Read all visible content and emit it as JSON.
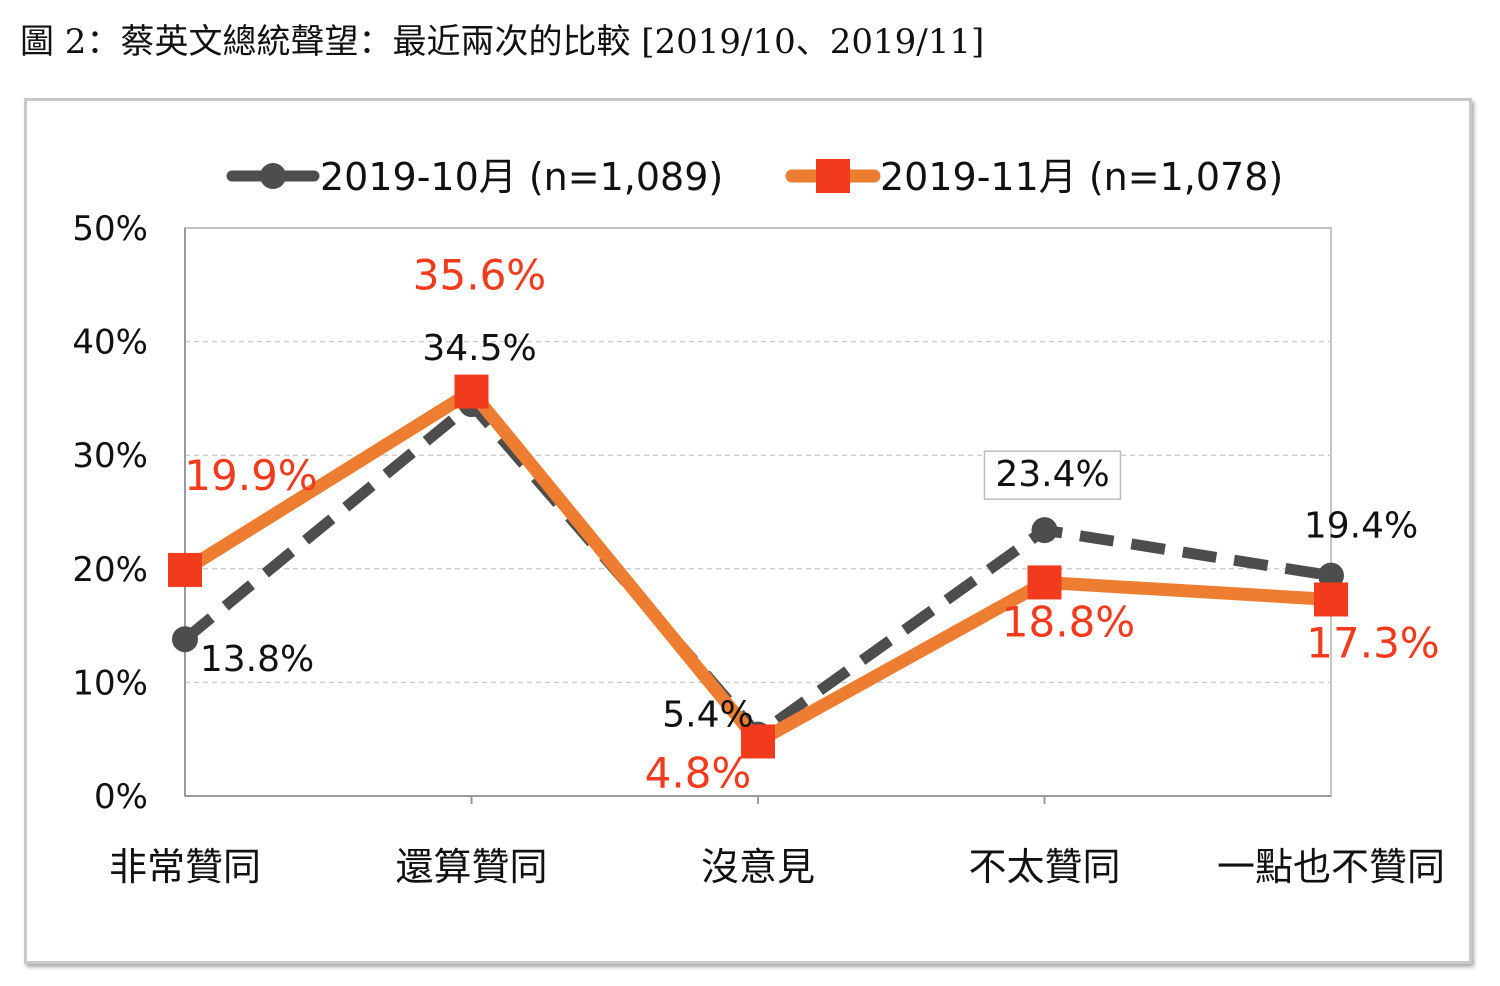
{
  "figure": {
    "title": "圖 2：蔡英文總統聲望：最近兩次的比較  [2019/10、2019/11]"
  },
  "colors": {
    "series_1": "#4d4d4d",
    "series_2_line": "#ed7d31",
    "series_2_marker": "#f23a1c",
    "series_2_label": "#f23a1c",
    "label_dark": "#111111",
    "grid": "#cfcfcf",
    "axis": "#9a9a9a"
  },
  "chart_data": {
    "type": "line",
    "title": "",
    "xlabel": "",
    "ylabel": "",
    "categories": [
      "非常贊同",
      "還算贊同",
      "沒意見",
      "不太贊同",
      "一點也不贊同"
    ],
    "ylim": [
      0,
      50
    ],
    "yticks": [
      0,
      10,
      20,
      30,
      40,
      50
    ],
    "ytick_labels": [
      "0%",
      "10%",
      "20%",
      "30%",
      "40%",
      "50%"
    ],
    "grid": true,
    "legend_position": "top",
    "series": [
      {
        "name": "2019-10月  (n=1,089)",
        "values": [
          13.8,
          34.5,
          5.4,
          23.4,
          19.4
        ],
        "labels": [
          "13.8%",
          "34.5%",
          "5.4%",
          "23.4%",
          "19.4%"
        ],
        "line_style": "dashed",
        "marker": "circle"
      },
      {
        "name": "2019-11月  (n=1,078)",
        "values": [
          19.9,
          35.6,
          4.8,
          18.8,
          17.3
        ],
        "labels": [
          "19.9%",
          "35.6%",
          "4.8%",
          "18.8%",
          "17.3%"
        ],
        "line_style": "solid",
        "marker": "square"
      }
    ]
  }
}
